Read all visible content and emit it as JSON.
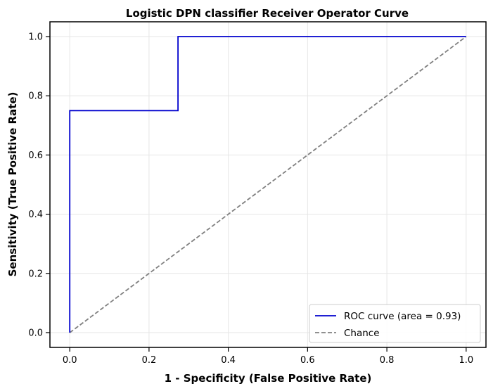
{
  "chart_data": {
    "type": "line",
    "title": "Logistic DPN classifier Receiver Operator Curve",
    "xlabel": "1 - Specificity (False Positive Rate)",
    "ylabel": "Sensitivity (True Positive Rate)",
    "xlim": [
      -0.05,
      1.05
    ],
    "ylim": [
      -0.05,
      1.05
    ],
    "xticks": [
      0.0,
      0.2,
      0.4,
      0.6,
      0.8,
      1.0
    ],
    "yticks": [
      0.0,
      0.2,
      0.4,
      0.6,
      0.8,
      1.0
    ],
    "xtick_labels": [
      "0.0",
      "0.2",
      "0.4",
      "0.6",
      "0.8",
      "1.0"
    ],
    "ytick_labels": [
      "0.0",
      "0.2",
      "0.4",
      "0.6",
      "0.8",
      "1.0"
    ],
    "grid": true,
    "legend_position": "bottom-right",
    "series": [
      {
        "name": "ROC curve (area = 0.93)",
        "color": "#0000cd",
        "style": "solid",
        "x": [
          0.0,
          0.0,
          0.273,
          0.273,
          1.0
        ],
        "y": [
          0.0,
          0.75,
          0.75,
          1.0,
          1.0
        ]
      },
      {
        "name": "Chance",
        "color": "#808080",
        "style": "dashed",
        "x": [
          0.0,
          1.0
        ],
        "y": [
          0.0,
          1.0
        ]
      }
    ]
  }
}
